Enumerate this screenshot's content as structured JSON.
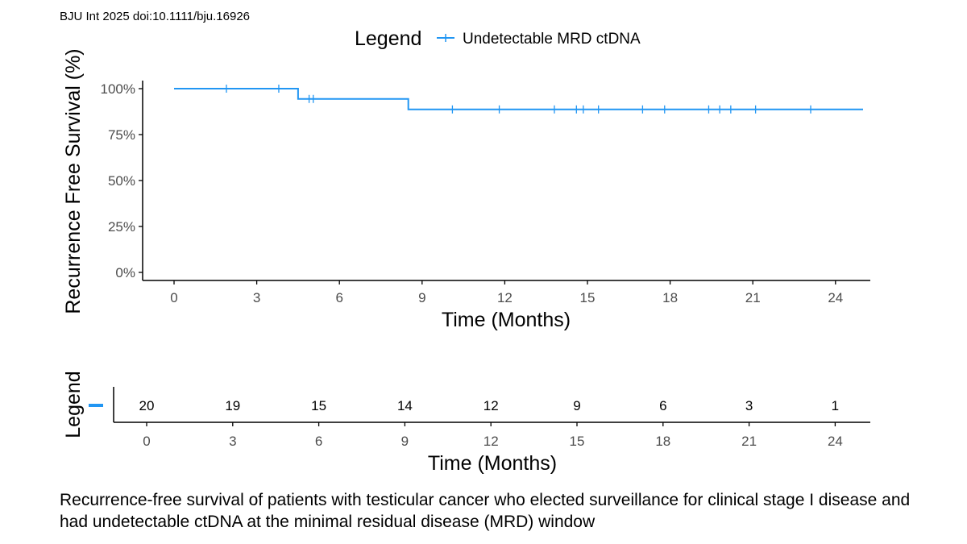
{
  "citation": "BJU Int 2025 doi:10.1111/bju.16926",
  "caption": "Recurrence-free survival of patients with testicular cancer who elected surveillance for clinical stage I disease and had undetectable ctDNA at the minimal residual disease (MRD) window",
  "colors": {
    "series": "#2196f3",
    "axis": "#000000",
    "tick_text": "#4d4d4d"
  },
  "chart_data": [
    {
      "type": "line",
      "subtype": "kaplan-meier-step",
      "legend_title": "Legend",
      "legend_position": "top",
      "xlabel": "Time (Months)",
      "ylabel": "Recurrence Free Survival (%)",
      "xlim": [
        -1,
        25
      ],
      "ylim": [
        0,
        1.05
      ],
      "xticks": [
        0,
        3,
        6,
        9,
        12,
        15,
        18,
        21,
        24
      ],
      "yticks": [
        0,
        0.25,
        0.5,
        0.75,
        1.0
      ],
      "ytick_labels": [
        "0%",
        "25%",
        "50%",
        "75%",
        "100%"
      ],
      "series": [
        {
          "name": "Undetectable MRD ctDNA",
          "steps": [
            {
              "x": 0,
              "y": 1.0
            },
            {
              "x": 4.5,
              "y": 0.944
            },
            {
              "x": 8.5,
              "y": 0.887
            }
          ],
          "end_x": 25,
          "censor_times": [
            1.9,
            3.8,
            4.9,
            5.05,
            10.1,
            11.8,
            13.8,
            14.6,
            14.85,
            15.4,
            17.0,
            17.8,
            19.4,
            19.8,
            20.2,
            21.1,
            23.1
          ]
        }
      ]
    },
    {
      "type": "table",
      "subtype": "number-at-risk",
      "ylabel": "Legend",
      "xlabel": "Time (Months)",
      "xlim": [
        -1,
        25
      ],
      "x": [
        0,
        3,
        6,
        9,
        12,
        15,
        18,
        21,
        24
      ],
      "values": [
        20,
        19,
        15,
        14,
        12,
        9,
        6,
        3,
        1
      ]
    }
  ]
}
